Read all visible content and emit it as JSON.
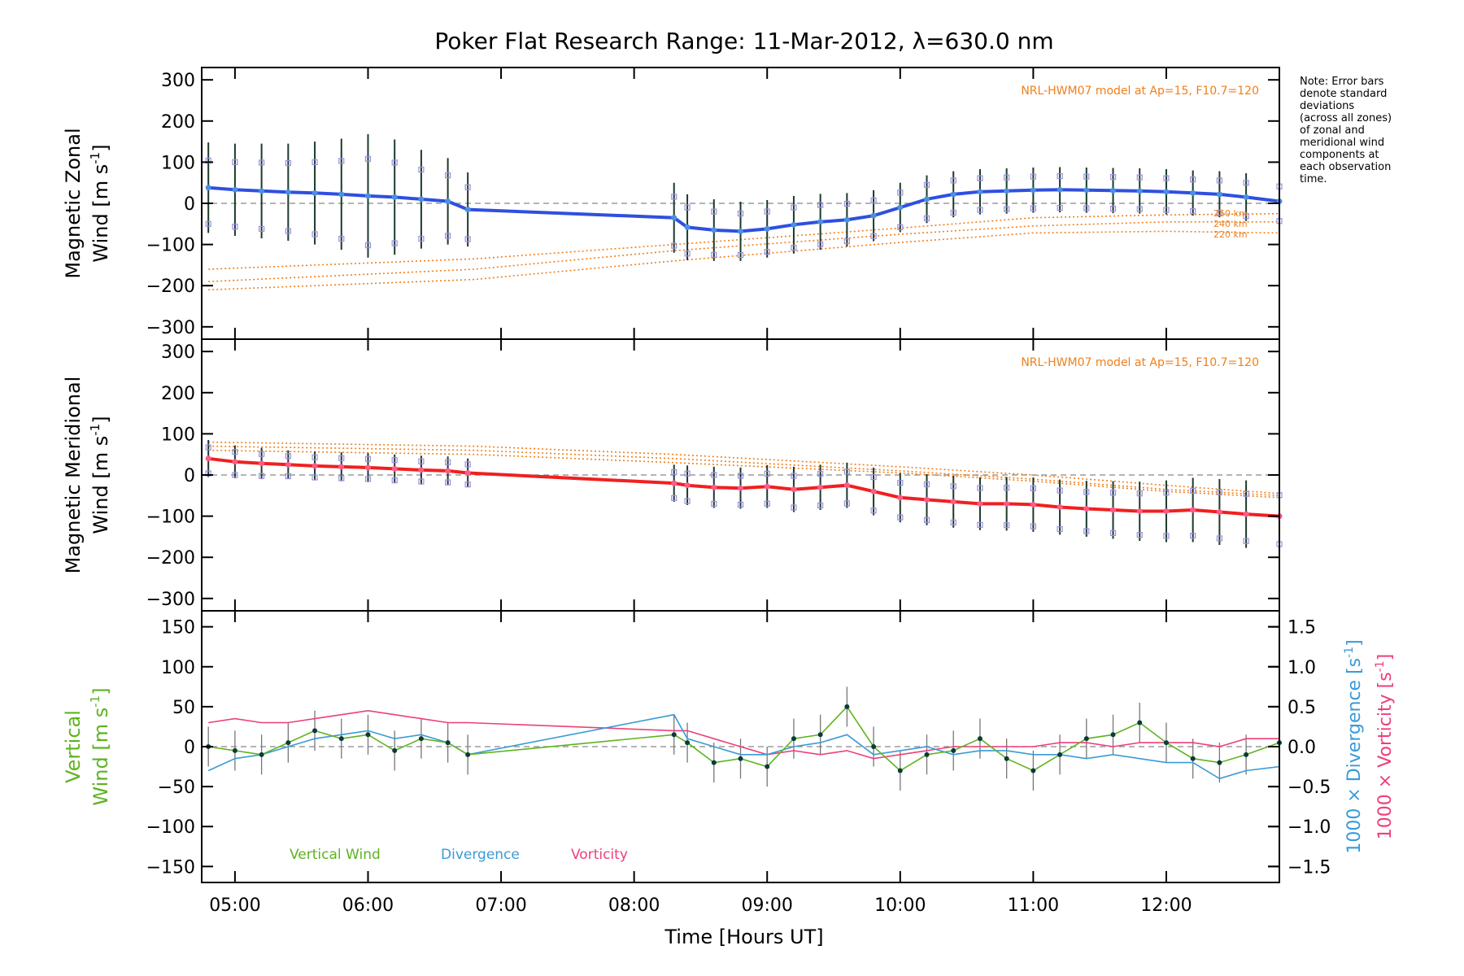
{
  "figure": {
    "title": "Poker Flat Research Range: 11-Mar-2012, λ=630.0 nm",
    "xlabel": "Time [Hours UT]",
    "note_lines": [
      "Note: Error bars",
      "denote standard",
      "deviations",
      "(across all zones)",
      "of zonal and",
      "meridional wind",
      "components at",
      "each observation",
      "time."
    ],
    "x_ticks": [
      "05:00",
      "06:00",
      "07:00",
      "08:00",
      "09:00",
      "10:00",
      "11:00",
      "12:00"
    ],
    "x_tick_values": [
      5,
      6,
      7,
      8,
      9,
      10,
      11,
      12
    ],
    "xlim": [
      4.75,
      12.85
    ]
  },
  "chart_data": [
    {
      "type": "line",
      "panel": "zonal",
      "ylabel_line1": "Magnetic Zonal",
      "ylabel_line2": "Wind [m s",
      "ylabel_sup": "-1",
      "ylabel_close": "]",
      "model_label": "NRL-HWM07 model at Ap=15, F10.7=120",
      "model_altitudes": [
        "250 km",
        "240 km",
        "220 km"
      ],
      "ylim": [
        -330,
        330
      ],
      "y_ticks": [
        300,
        200,
        100,
        0,
        -100,
        -200,
        -300
      ],
      "x_hours": [
        4.8,
        5.0,
        5.2,
        5.4,
        5.6,
        5.8,
        6.0,
        6.2,
        6.4,
        6.6,
        6.75,
        8.3,
        8.4,
        8.6,
        8.8,
        9.0,
        9.2,
        9.4,
        9.6,
        9.8,
        10.0,
        10.2,
        10.4,
        10.6,
        10.8,
        11.0,
        11.2,
        11.4,
        11.6,
        11.8,
        12.0,
        12.2,
        12.4,
        12.6,
        12.85
      ],
      "mean_wind": [
        38,
        33,
        30,
        27,
        25,
        22,
        18,
        15,
        10,
        5,
        -15,
        -35,
        -58,
        -65,
        -68,
        -62,
        -52,
        -45,
        -40,
        -30,
        -10,
        10,
        22,
        28,
        30,
        32,
        33,
        32,
        31,
        30,
        28,
        25,
        22,
        15,
        5
      ],
      "error_halfwidth": [
        110,
        112,
        115,
        118,
        125,
        135,
        150,
        140,
        120,
        105,
        90,
        85,
        80,
        75,
        72,
        70,
        70,
        68,
        65,
        62,
        60,
        58,
        56,
        55,
        55,
        55,
        55,
        55,
        55,
        55,
        55,
        55,
        56,
        58,
        60
      ],
      "model_x": [
        4.8,
        6.8,
        8.3,
        10.0,
        11.0,
        12.0,
        12.85
      ],
      "model_series": [
        {
          "values": [
            -160,
            -135,
            -100,
            -60,
            -35,
            -28,
            -25
          ]
        },
        {
          "values": [
            -190,
            -160,
            -115,
            -75,
            -55,
            -45,
            -45
          ]
        },
        {
          "values": [
            -210,
            -185,
            -140,
            -95,
            -72,
            -68,
            -72
          ]
        }
      ]
    },
    {
      "type": "line",
      "panel": "meridional",
      "ylabel_line1": "Magnetic Meridional",
      "ylabel_line2": "Wind [m s",
      "ylabel_sup": "-1",
      "ylabel_close": "]",
      "model_label": "NRL-HWM07 model at Ap=15, F10.7=120",
      "ylim": [
        -330,
        330
      ],
      "y_ticks": [
        300,
        200,
        100,
        0,
        -100,
        -200,
        -300
      ],
      "x_hours": [
        4.8,
        5.0,
        5.2,
        5.4,
        5.6,
        5.8,
        6.0,
        6.2,
        6.4,
        6.6,
        6.75,
        8.3,
        8.4,
        8.6,
        8.8,
        9.0,
        9.2,
        9.4,
        9.6,
        9.8,
        10.0,
        10.2,
        10.4,
        10.6,
        10.8,
        11.0,
        11.2,
        11.4,
        11.6,
        11.8,
        12.0,
        12.2,
        12.4,
        12.6,
        12.85
      ],
      "mean_wind": [
        40,
        32,
        28,
        25,
        22,
        20,
        18,
        15,
        12,
        10,
        5,
        -20,
        -25,
        -30,
        -32,
        -28,
        -35,
        -30,
        -25,
        -40,
        -55,
        -60,
        -65,
        -70,
        -70,
        -72,
        -78,
        -82,
        -85,
        -88,
        -88,
        -85,
        -90,
        -95,
        -100
      ],
      "error_halfwidth": [
        45,
        40,
        38,
        35,
        35,
        35,
        35,
        35,
        35,
        35,
        35,
        45,
        48,
        50,
        50,
        52,
        55,
        55,
        55,
        58,
        60,
        62,
        63,
        64,
        65,
        66,
        67,
        68,
        70,
        72,
        75,
        78,
        80,
        82,
        85
      ],
      "model_x": [
        4.8,
        6.8,
        8.3,
        10.0,
        11.0,
        12.0,
        12.85
      ],
      "model_series": [
        {
          "values": [
            60,
            50,
            30,
            5,
            -15,
            -40,
            -55
          ]
        },
        {
          "values": [
            70,
            60,
            40,
            10,
            -10,
            -35,
            -50
          ]
        },
        {
          "values": [
            80,
            70,
            50,
            20,
            0,
            -25,
            -45
          ]
        }
      ]
    },
    {
      "type": "line",
      "panel": "vertical",
      "ylabel_left_line1": "Vertical",
      "ylabel_left_line2": "Wind [m s",
      "ylabel_left_sup": "-1",
      "ylabel_left_close": "]",
      "ylabel_right1": "1000 × Divergence [s",
      "ylabel_right1_sup": "-1",
      "ylabel_right1_close": "]",
      "ylabel_right2": "1000 × Vorticity [s",
      "ylabel_right2_sup": "-1",
      "ylabel_right2_close": "]",
      "ylim": [
        -170,
        170
      ],
      "y_ticks": [
        150,
        100,
        50,
        0,
        -50,
        -100,
        -150
      ],
      "y2lim": [
        -1.7,
        1.7
      ],
      "y2_ticks": [
        1.5,
        1.0,
        0.5,
        0.0,
        -0.5,
        -1.0,
        -1.5
      ],
      "y2_tick_labels": [
        "1.5",
        "1.0",
        "0.5",
        "0.0",
        "−0.5",
        "−1.0",
        "−1.5"
      ],
      "legend": [
        "Vertical Wind",
        "Divergence",
        "Vorticity"
      ],
      "legend_placement": "bottom-left",
      "x_hours": [
        4.8,
        5.0,
        5.2,
        5.4,
        5.6,
        5.8,
        6.0,
        6.2,
        6.4,
        6.6,
        6.75,
        8.3,
        8.4,
        8.6,
        8.8,
        9.0,
        9.2,
        9.4,
        9.6,
        9.8,
        10.0,
        10.2,
        10.4,
        10.6,
        10.8,
        11.0,
        11.2,
        11.4,
        11.6,
        11.8,
        12.0,
        12.2,
        12.4,
        12.6,
        12.85
      ],
      "vertical_wind": [
        0,
        -5,
        -10,
        5,
        20,
        10,
        15,
        -5,
        10,
        5,
        -10,
        15,
        5,
        -20,
        -15,
        -25,
        10,
        15,
        50,
        0,
        -30,
        -10,
        -5,
        10,
        -15,
        -30,
        -10,
        10,
        15,
        30,
        5,
        -15,
        -20,
        -10,
        5
      ],
      "divergence": [
        -0.3,
        -0.15,
        -0.1,
        0.0,
        0.1,
        0.15,
        0.2,
        0.1,
        0.15,
        0.05,
        -0.1,
        0.4,
        0.1,
        0.0,
        -0.1,
        -0.1,
        0.0,
        0.05,
        0.15,
        -0.1,
        -0.05,
        0.0,
        -0.1,
        -0.05,
        -0.05,
        -0.1,
        -0.1,
        -0.15,
        -0.1,
        -0.15,
        -0.2,
        -0.2,
        -0.4,
        -0.3,
        -0.25
      ],
      "vorticity": [
        0.3,
        0.35,
        0.3,
        0.3,
        0.35,
        0.4,
        0.45,
        0.4,
        0.35,
        0.3,
        0.3,
        0.2,
        0.2,
        0.1,
        0.0,
        -0.1,
        -0.05,
        -0.1,
        -0.05,
        -0.15,
        -0.1,
        -0.05,
        0.0,
        0.0,
        0.0,
        0.0,
        0.05,
        0.05,
        0.0,
        0.05,
        0.05,
        0.05,
        0.0,
        0.1,
        0.1
      ]
    }
  ],
  "colors": {
    "zonal_mean": "#2f4fe0",
    "zonal_mean_light": "#4a90e2",
    "meridional_mean": "#f02020",
    "meridional_mean_light": "#ff5a8a",
    "error_bar": "#1c3a2a",
    "model": "#f07f1a",
    "scatter": "#9a8fe0",
    "vertical_wind": "#5fb31f",
    "divergence": "#3a9bd6",
    "vorticity": "#ee3f7a",
    "grid_zero": "#888888",
    "axis": "#000000"
  }
}
